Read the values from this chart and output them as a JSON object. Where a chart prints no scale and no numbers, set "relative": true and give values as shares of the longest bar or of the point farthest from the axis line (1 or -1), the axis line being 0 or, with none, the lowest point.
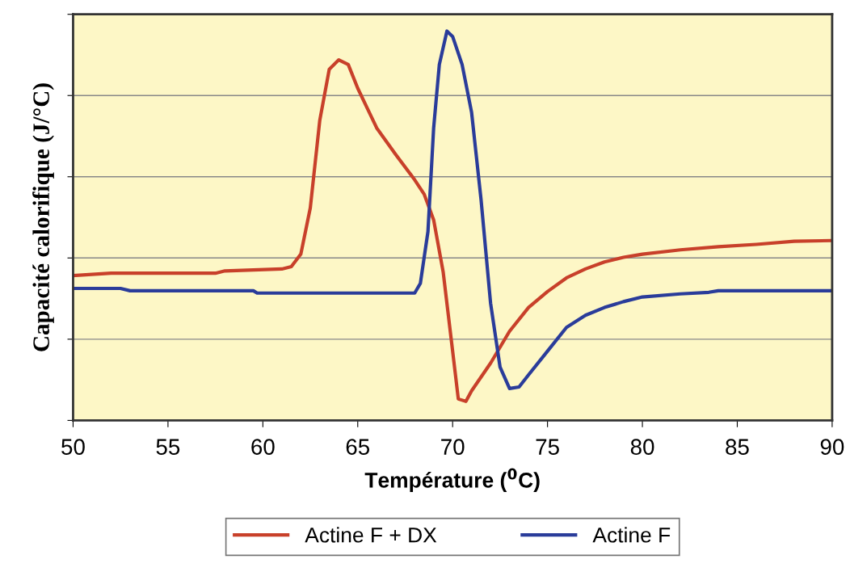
{
  "chart_data": {
    "type": "line",
    "relative": true,
    "xlabel": "Température ($^{0}$C)",
    "ylabel": "Capacité calorifique (J/°C)",
    "xlim": [
      50,
      90
    ],
    "xticks": [
      50,
      55,
      60,
      65,
      70,
      75,
      80,
      85,
      90
    ],
    "tick_labels": "x",
    "grid": "y",
    "legend": "bottom",
    "marker": "none",
    "line_style": "solid",
    "series": [
      {
        "name": "Actine F + DX",
        "color": "#c8402a",
        "x": [
          50,
          52,
          57.5,
          58,
          61,
          61.5,
          62,
          62.5,
          63,
          63.5,
          64,
          64.5,
          65,
          65.5,
          66,
          67,
          68,
          68.5,
          69,
          69.5,
          70,
          70.3,
          70.7,
          71,
          72,
          73,
          74,
          75,
          76,
          77,
          78,
          79,
          80,
          82,
          84,
          86,
          88,
          90
        ],
        "values": [
          0.372,
          0.378,
          0.378,
          0.384,
          0.389,
          0.395,
          0.427,
          0.546,
          0.771,
          0.902,
          0.926,
          0.914,
          0.853,
          0.802,
          0.751,
          0.683,
          0.618,
          0.581,
          0.515,
          0.382,
          0.178,
          0.055,
          0.049,
          0.076,
          0.147,
          0.229,
          0.29,
          0.331,
          0.366,
          0.389,
          0.407,
          0.419,
          0.427,
          0.438,
          0.446,
          0.452,
          0.46,
          0.462
        ]
      },
      {
        "name": "Actine F",
        "color": "#2a3c9a",
        "x": [
          50,
          52.5,
          53,
          59.5,
          59.7,
          68,
          68.3,
          68.7,
          69,
          69.3,
          69.7,
          70,
          70.5,
          71,
          71.5,
          72,
          72.5,
          73,
          73.5,
          74,
          75,
          76,
          77,
          78,
          79,
          80,
          82,
          83.5,
          84,
          90
        ],
        "values": [
          0.339,
          0.339,
          0.333,
          0.333,
          0.327,
          0.327,
          0.352,
          0.485,
          0.751,
          0.914,
          1,
          0.986,
          0.914,
          0.791,
          0.566,
          0.301,
          0.137,
          0.082,
          0.086,
          0.117,
          0.178,
          0.239,
          0.27,
          0.29,
          0.305,
          0.317,
          0.325,
          0.329,
          0.333,
          0.333
        ]
      }
    ]
  }
}
